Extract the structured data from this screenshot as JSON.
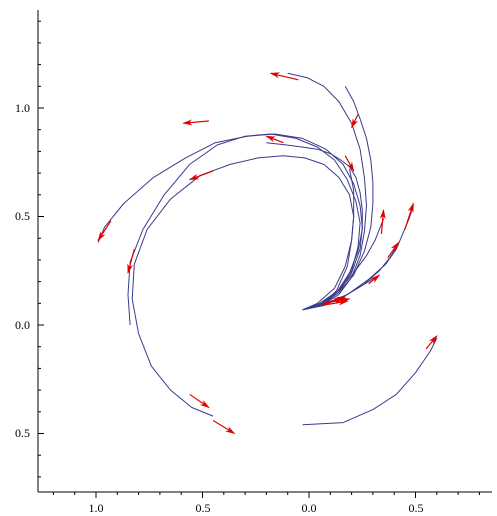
{
  "chart_data": {
    "type": "line",
    "title": "",
    "xlabel": "",
    "ylabel": "",
    "xlim": [
      -1.25,
      0.85
    ],
    "ylim": [
      -0.75,
      1.45
    ],
    "grid": false,
    "colors": {
      "curve": "#3a3a8c",
      "arrow": "#e00000",
      "axis": "#000000"
    },
    "x_ticks": [
      {
        "value": -1.0,
        "label": "1.0"
      },
      {
        "value": -0.5,
        "label": "0.5"
      },
      {
        "value": 0.0,
        "label": "0.0"
      },
      {
        "value": 0.5,
        "label": "0.5"
      }
    ],
    "y_ticks": [
      {
        "value": -0.5,
        "label": "0.5"
      },
      {
        "value": 0.0,
        "label": "0.0"
      },
      {
        "value": 0.5,
        "label": "0.5"
      },
      {
        "value": 1.0,
        "label": "1.0"
      }
    ],
    "series": [
      {
        "x": [
          -0.03,
          0.05,
          0.14,
          0.2,
          0.24,
          0.25,
          0.24,
          0.21,
          0.16,
          0.08,
          -0.03,
          -0.16,
          -0.29,
          -0.44,
          -0.58,
          -0.73,
          -0.87,
          -0.96,
          -0.99
        ],
        "y": [
          0.07,
          0.09,
          0.15,
          0.24,
          0.35,
          0.45,
          0.55,
          0.65,
          0.74,
          0.81,
          0.86,
          0.88,
          0.87,
          0.84,
          0.77,
          0.68,
          0.56,
          0.45,
          0.38
        ]
      },
      {
        "x": [
          -0.03,
          0.05,
          0.14,
          0.2,
          0.23,
          0.24,
          0.22,
          0.18,
          0.12,
          0.04,
          -0.06,
          -0.18,
          -0.3,
          -0.43,
          -0.56,
          -0.68,
          -0.78,
          -0.84,
          -0.85,
          -0.84
        ],
        "y": [
          0.07,
          0.1,
          0.16,
          0.25,
          0.36,
          0.47,
          0.57,
          0.67,
          0.76,
          0.82,
          0.86,
          0.88,
          0.87,
          0.83,
          0.74,
          0.6,
          0.44,
          0.29,
          0.14,
          0.0
        ]
      },
      {
        "x": [
          -0.03,
          0.04,
          0.12,
          0.17,
          0.2,
          0.21,
          0.19,
          0.14,
          0.07,
          -0.02,
          -0.12,
          -0.24,
          -0.37,
          -0.51,
          -0.65,
          -0.76,
          -0.82,
          -0.83,
          -0.8,
          -0.74,
          -0.65,
          -0.55,
          -0.45
        ],
        "y": [
          0.07,
          0.1,
          0.17,
          0.27,
          0.39,
          0.5,
          0.6,
          0.68,
          0.74,
          0.77,
          0.78,
          0.77,
          0.74,
          0.69,
          0.58,
          0.44,
          0.28,
          0.12,
          -0.04,
          -0.19,
          -0.3,
          -0.38,
          -0.42
        ]
      },
      {
        "x": [
          -0.03,
          0.06,
          0.14,
          0.2,
          0.24,
          0.26,
          0.27,
          0.26,
          0.24,
          0.2,
          0.14,
          0.07,
          -0.01,
          -0.1
        ],
        "y": [
          0.07,
          0.09,
          0.14,
          0.22,
          0.32,
          0.43,
          0.55,
          0.68,
          0.81,
          0.93,
          1.03,
          1.1,
          1.14,
          1.16
        ]
      },
      {
        "x": [
          -0.03,
          0.06,
          0.14,
          0.21,
          0.26,
          0.29,
          0.3,
          0.3,
          0.29,
          0.27,
          0.24,
          0.21,
          0.17
        ],
        "y": [
          0.07,
          0.09,
          0.15,
          0.23,
          0.34,
          0.45,
          0.56,
          0.66,
          0.76,
          0.86,
          0.95,
          1.03,
          1.1
        ]
      },
      {
        "x": [
          -0.03,
          0.05,
          0.13,
          0.19,
          0.23,
          0.25,
          0.25,
          0.24,
          0.22,
          0.19,
          0.15,
          0.1,
          0.04,
          -0.03,
          -0.11,
          -0.2
        ],
        "y": [
          0.07,
          0.09,
          0.15,
          0.24,
          0.34,
          0.44,
          0.53,
          0.61,
          0.68,
          0.73,
          0.76,
          0.79,
          0.81,
          0.82,
          0.83,
          0.84
        ]
      },
      {
        "x": [
          -0.03,
          0.06,
          0.13,
          0.18,
          0.2,
          0.21,
          0.21,
          0.19
        ],
        "y": [
          0.07,
          0.09,
          0.16,
          0.27,
          0.39,
          0.5,
          0.62,
          0.72
        ]
      },
      {
        "x": [
          -0.03,
          0.06,
          0.14,
          0.21,
          0.27,
          0.31,
          0.33,
          0.35
        ],
        "y": [
          0.07,
          0.1,
          0.16,
          0.24,
          0.32,
          0.39,
          0.44,
          0.49
        ]
      },
      {
        "x": [
          -0.03,
          0.08,
          0.18,
          0.28,
          0.36,
          0.41,
          0.44,
          0.47,
          0.49
        ],
        "y": [
          0.07,
          0.1,
          0.14,
          0.21,
          0.28,
          0.35,
          0.42,
          0.49,
          0.55
        ]
      },
      {
        "x": [
          -0.03,
          0.08,
          0.18,
          0.26,
          0.33,
          0.38,
          0.41
        ],
        "y": [
          0.07,
          0.1,
          0.14,
          0.19,
          0.25,
          0.31,
          0.36
        ]
      },
      {
        "x": [
          -0.03,
          0.07,
          0.16,
          0.23,
          0.28,
          0.31
        ],
        "y": [
          0.07,
          0.09,
          0.13,
          0.17,
          0.2,
          0.22
        ]
      },
      {
        "x": [
          -0.03,
          0.16,
          0.3,
          0.41,
          0.5,
          0.57,
          0.6
        ],
        "y": [
          -0.46,
          -0.45,
          -0.39,
          -0.32,
          -0.22,
          -0.12,
          -0.06
        ]
      }
    ],
    "arrows": [
      {
        "x1": -0.93,
        "y1": 0.48,
        "x2": -0.99,
        "y2": 0.39
      },
      {
        "x1": -0.82,
        "y1": 0.35,
        "x2": -0.85,
        "y2": 0.24
      },
      {
        "x1": -0.47,
        "y1": 0.94,
        "x2": -0.59,
        "y2": 0.93
      },
      {
        "x1": -0.45,
        "y1": 0.71,
        "x2": -0.56,
        "y2": 0.67
      },
      {
        "x1": -0.12,
        "y1": 0.84,
        "x2": -0.2,
        "y2": 0.87
      },
      {
        "x1": -0.05,
        "y1": 1.13,
        "x2": -0.18,
        "y2": 1.16
      },
      {
        "x1": 0.23,
        "y1": 0.97,
        "x2": 0.2,
        "y2": 0.91
      },
      {
        "x1": 0.17,
        "y1": 0.78,
        "x2": 0.21,
        "y2": 0.71
      },
      {
        "x1": 0.34,
        "y1": 0.42,
        "x2": 0.35,
        "y2": 0.53
      },
      {
        "x1": 0.45,
        "y1": 0.44,
        "x2": 0.49,
        "y2": 0.56
      },
      {
        "x1": 0.37,
        "y1": 0.31,
        "x2": 0.42,
        "y2": 0.38
      },
      {
        "x1": 0.28,
        "y1": 0.19,
        "x2": 0.33,
        "y2": 0.23
      },
      {
        "x1": 0.06,
        "y1": 0.09,
        "x2": 0.18,
        "y2": 0.11
      },
      {
        "x1": 0.07,
        "y1": 0.1,
        "x2": 0.19,
        "y2": 0.12
      },
      {
        "x1": 0.06,
        "y1": 0.09,
        "x2": 0.17,
        "y2": 0.13
      },
      {
        "x1": 0.07,
        "y1": 0.1,
        "x2": 0.16,
        "y2": 0.12
      },
      {
        "x1": 0.55,
        "y1": -0.11,
        "x2": 0.6,
        "y2": -0.05
      },
      {
        "x1": -0.56,
        "y1": -0.32,
        "x2": -0.47,
        "y2": -0.38
      },
      {
        "x1": -0.45,
        "y1": -0.44,
        "x2": -0.35,
        "y2": -0.5
      }
    ]
  }
}
